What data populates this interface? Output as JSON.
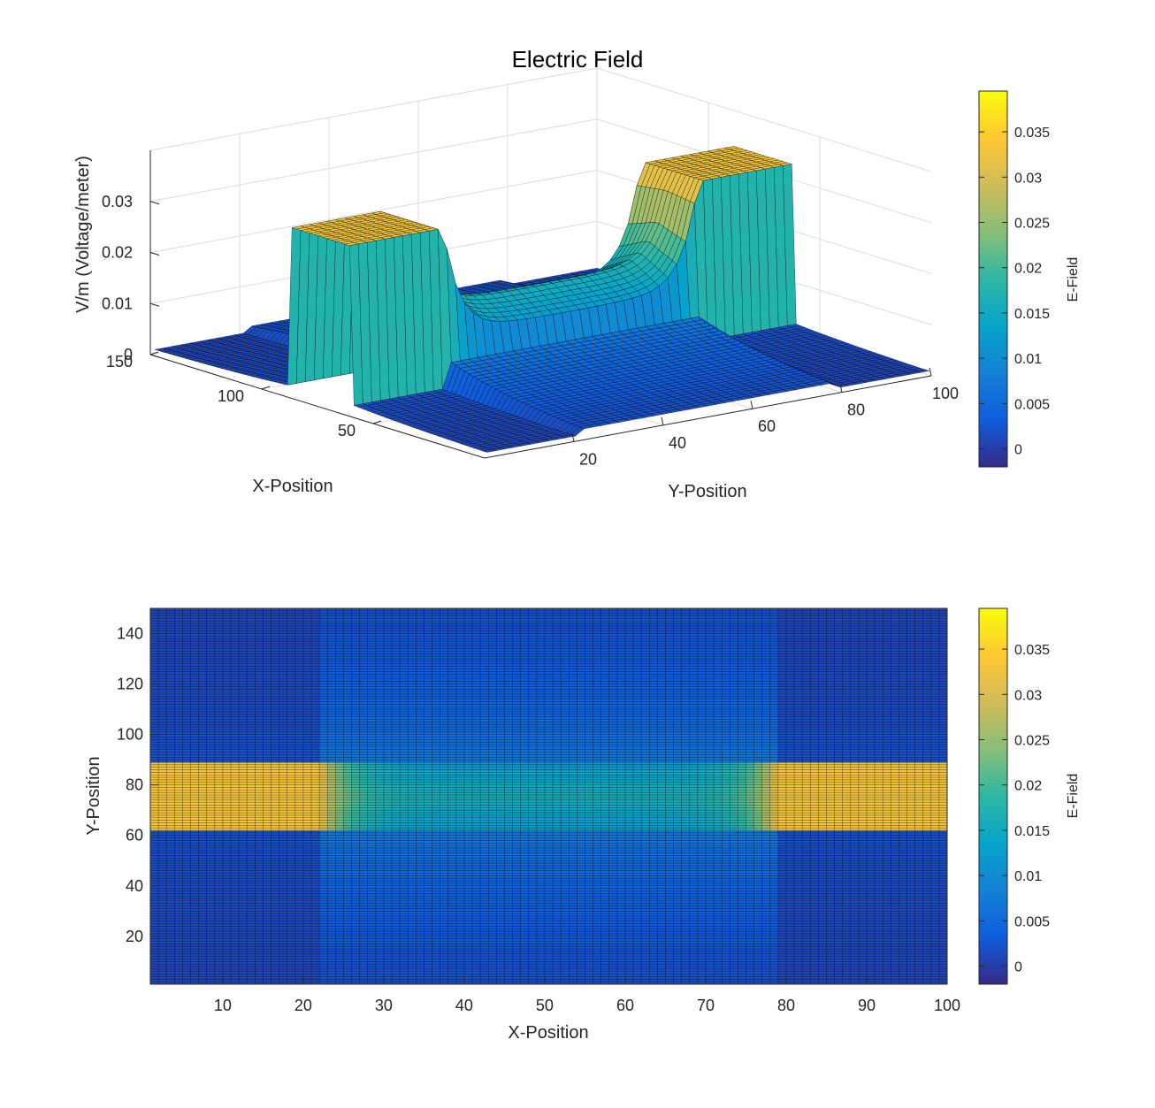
{
  "title": "Electric Field",
  "colors": {
    "parula": [
      "#352a87",
      "#0f5cdd",
      "#1481d6",
      "#06a4ca",
      "#2eb7a4",
      "#87bf77",
      "#d1bb59",
      "#fec832",
      "#f9fb0e"
    ],
    "axis": "#262626",
    "grid": "#dcdcdc",
    "edge": "#000000"
  },
  "chart_data": [
    {
      "type": "surface",
      "title": "Electric Field",
      "xlabel": "X-Position",
      "ylabel": "Y-Position",
      "zlabel": "V/m (Voltage/meter)",
      "colorbar_label": "E-Field",
      "x_ticks": [
        "150",
        "100",
        "50"
      ],
      "y_ticks": [
        "20",
        "40",
        "60",
        "80",
        "100"
      ],
      "z_ticks": [
        "0",
        "0.01",
        "0.02",
        "0.03"
      ],
      "colorbar_ticks": [
        "0",
        "0.005",
        "0.01",
        "0.015",
        "0.02",
        "0.025",
        "0.03",
        "0.035"
      ],
      "colorbar_range": [
        -0.002,
        0.0395
      ],
      "xlim": [
        1,
        150
      ],
      "ylim": [
        1,
        100
      ],
      "zlim": [
        0,
        0.04
      ],
      "grid": true,
      "field": {
        "description_values": "E-field magnitude surface over a 100 x 150 grid",
        "band_range": [
          62,
          89
        ],
        "left_plate_end": 22,
        "right_plate_start": 79,
        "plate_level": 0.033,
        "center_level": 0.012
      }
    },
    {
      "type": "heatmap",
      "xlabel": "X-Position",
      "ylabel": "Y-Position",
      "colorbar_label": "E-Field",
      "x_ticks": [
        "10",
        "20",
        "30",
        "40",
        "50",
        "60",
        "70",
        "80",
        "90",
        "100"
      ],
      "y_ticks": [
        "20",
        "40",
        "60",
        "80",
        "100",
        "120",
        "140"
      ],
      "colorbar_ticks": [
        "0",
        "0.005",
        "0.01",
        "0.015",
        "0.02",
        "0.025",
        "0.03",
        "0.035"
      ],
      "colorbar_range": [
        -0.002,
        0.0395
      ],
      "xlim": [
        1,
        100
      ],
      "ylim": [
        1,
        150
      ],
      "grid": false
    }
  ]
}
